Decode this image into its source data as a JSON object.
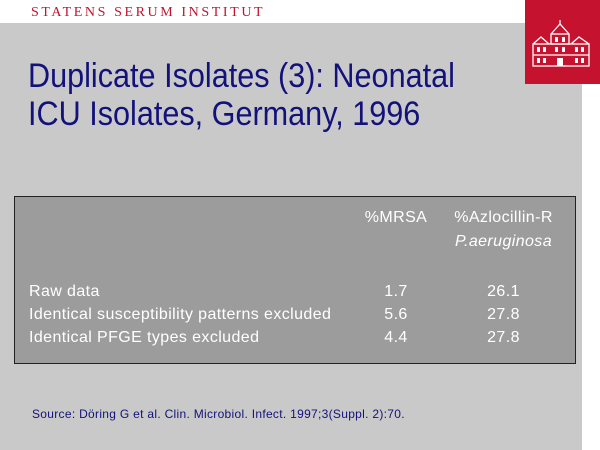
{
  "brand": {
    "name": "STATENS SERUM INSTITUT"
  },
  "title": {
    "line1": "Duplicate Isolates (3): Neonatal",
    "line2": "ICU Isolates, Germany, 1996"
  },
  "table": {
    "headers": {
      "col1": "%MRSA",
      "col2": "%Azlocillin-R",
      "col2_sub": "P.aeruginosa"
    },
    "rows": [
      {
        "label": "Raw data",
        "mrsa": "1.7",
        "azlo": "26.1"
      },
      {
        "label": "Identical susceptibility patterns excluded",
        "mrsa": "5.6",
        "azlo": "27.8"
      },
      {
        "label": "Identical PFGE types excluded",
        "mrsa": "4.4",
        "azlo": "27.8"
      }
    ]
  },
  "source": "Source: Döring G et al.  Clin. Microbiol. Infect. 1997;3(Suppl. 2):70.",
  "colors": {
    "brand_red": "#c4122f",
    "title_navy": "#12127a",
    "slide_gray": "#c9c9c9",
    "table_gray": "#9c9c9c"
  }
}
